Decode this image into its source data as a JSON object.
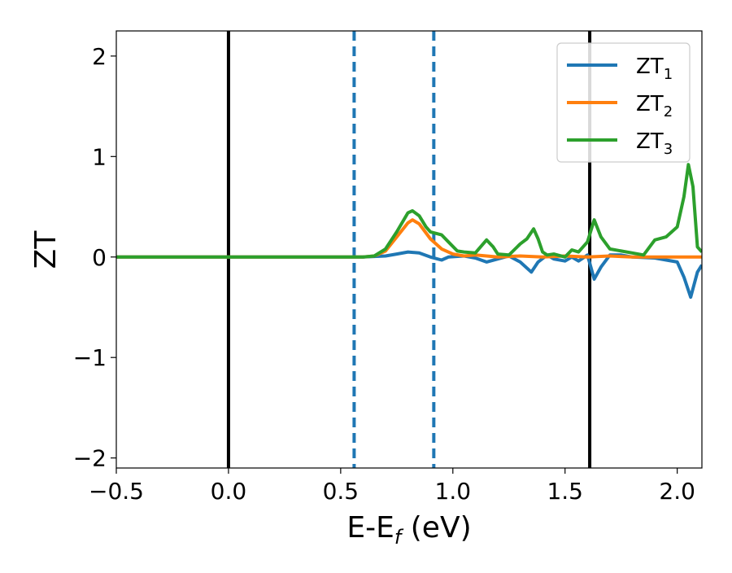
{
  "chart_data": {
    "type": "line",
    "title": "",
    "xlabel": "E-E",
    "xlabel_sub": "f",
    "xlabel_unit": " (eV)",
    "ylabel": "ZT",
    "xlim": [
      -0.5,
      2.11
    ],
    "ylim": [
      -2.1,
      2.25
    ],
    "xticks": [
      -0.5,
      0.0,
      0.5,
      1.0,
      1.5,
      2.0
    ],
    "xtick_labels": [
      "−0.5",
      "0.0",
      "0.5",
      "1.0",
      "1.5",
      "2.0"
    ],
    "yticks": [
      -2,
      -1,
      0,
      1,
      2
    ],
    "ytick_labels": [
      "−2",
      "−1",
      "0",
      "1",
      "2"
    ],
    "grid": false,
    "legend_position": "top-right",
    "vlines": [
      {
        "x": 0.0,
        "style": "solid",
        "color": "#000000"
      },
      {
        "x": 0.56,
        "style": "dashed",
        "color": "#1f77b4"
      },
      {
        "x": 0.915,
        "style": "dashed",
        "color": "#1f77b4"
      },
      {
        "x": 1.61,
        "style": "solid",
        "color": "#000000"
      }
    ],
    "series": [
      {
        "name": "ZT",
        "sub": "1",
        "color": "#1f77b4",
        "points": [
          [
            -0.5,
            0
          ],
          [
            0.6,
            0
          ],
          [
            0.7,
            0.01
          ],
          [
            0.75,
            0.03
          ],
          [
            0.8,
            0.05
          ],
          [
            0.85,
            0.04
          ],
          [
            0.9,
            0.0
          ],
          [
            0.95,
            -0.03
          ],
          [
            0.98,
            0.0
          ],
          [
            1.05,
            0.01
          ],
          [
            1.1,
            -0.01
          ],
          [
            1.15,
            -0.05
          ],
          [
            1.2,
            -0.02
          ],
          [
            1.25,
            0.01
          ],
          [
            1.3,
            -0.05
          ],
          [
            1.35,
            -0.15
          ],
          [
            1.38,
            -0.05
          ],
          [
            1.42,
            0.02
          ],
          [
            1.45,
            -0.02
          ],
          [
            1.5,
            -0.04
          ],
          [
            1.53,
            0.0
          ],
          [
            1.56,
            -0.04
          ],
          [
            1.6,
            0.02
          ],
          [
            1.63,
            -0.22
          ],
          [
            1.66,
            -0.1
          ],
          [
            1.7,
            0.02
          ],
          [
            1.75,
            0.02
          ],
          [
            1.8,
            0.0
          ],
          [
            1.9,
            -0.01
          ],
          [
            2.0,
            -0.05
          ],
          [
            2.03,
            -0.2
          ],
          [
            2.06,
            -0.4
          ],
          [
            2.09,
            -0.15
          ],
          [
            2.11,
            -0.08
          ]
        ]
      },
      {
        "name": "ZT",
        "sub": "2",
        "color": "#ff7f0e",
        "points": [
          [
            -0.5,
            0
          ],
          [
            0.6,
            0
          ],
          [
            0.65,
            0.01
          ],
          [
            0.7,
            0.06
          ],
          [
            0.75,
            0.2
          ],
          [
            0.8,
            0.34
          ],
          [
            0.82,
            0.37
          ],
          [
            0.85,
            0.33
          ],
          [
            0.9,
            0.18
          ],
          [
            0.95,
            0.08
          ],
          [
            1.0,
            0.03
          ],
          [
            1.05,
            0.01
          ],
          [
            1.1,
            0.02
          ],
          [
            1.15,
            0.01
          ],
          [
            1.2,
            0.0
          ],
          [
            1.3,
            0.01
          ],
          [
            1.4,
            0.0
          ],
          [
            1.5,
            0.01
          ],
          [
            1.6,
            0.0
          ],
          [
            1.7,
            0.01
          ],
          [
            1.8,
            0.0
          ],
          [
            2.11,
            0.0
          ]
        ]
      },
      {
        "name": "ZT",
        "sub": "3",
        "color": "#2ca02c",
        "points": [
          [
            -0.5,
            0
          ],
          [
            0.6,
            0
          ],
          [
            0.65,
            0.01
          ],
          [
            0.7,
            0.08
          ],
          [
            0.75,
            0.25
          ],
          [
            0.8,
            0.44
          ],
          [
            0.82,
            0.46
          ],
          [
            0.85,
            0.41
          ],
          [
            0.88,
            0.3
          ],
          [
            0.9,
            0.25
          ],
          [
            0.95,
            0.22
          ],
          [
            0.98,
            0.15
          ],
          [
            1.02,
            0.06
          ],
          [
            1.05,
            0.05
          ],
          [
            1.1,
            0.04
          ],
          [
            1.15,
            0.17
          ],
          [
            1.18,
            0.1
          ],
          [
            1.2,
            0.03
          ],
          [
            1.25,
            0.02
          ],
          [
            1.3,
            0.13
          ],
          [
            1.33,
            0.18
          ],
          [
            1.36,
            0.28
          ],
          [
            1.38,
            0.18
          ],
          [
            1.4,
            0.05
          ],
          [
            1.42,
            0.02
          ],
          [
            1.45,
            0.03
          ],
          [
            1.5,
            0.0
          ],
          [
            1.53,
            0.07
          ],
          [
            1.56,
            0.05
          ],
          [
            1.6,
            0.15
          ],
          [
            1.63,
            0.37
          ],
          [
            1.66,
            0.2
          ],
          [
            1.7,
            0.08
          ],
          [
            1.75,
            0.06
          ],
          [
            1.8,
            0.04
          ],
          [
            1.85,
            0.02
          ],
          [
            1.9,
            0.17
          ],
          [
            1.95,
            0.2
          ],
          [
            2.0,
            0.3
          ],
          [
            2.03,
            0.6
          ],
          [
            2.05,
            0.92
          ],
          [
            2.07,
            0.7
          ],
          [
            2.09,
            0.1
          ],
          [
            2.11,
            0.05
          ]
        ]
      }
    ]
  }
}
